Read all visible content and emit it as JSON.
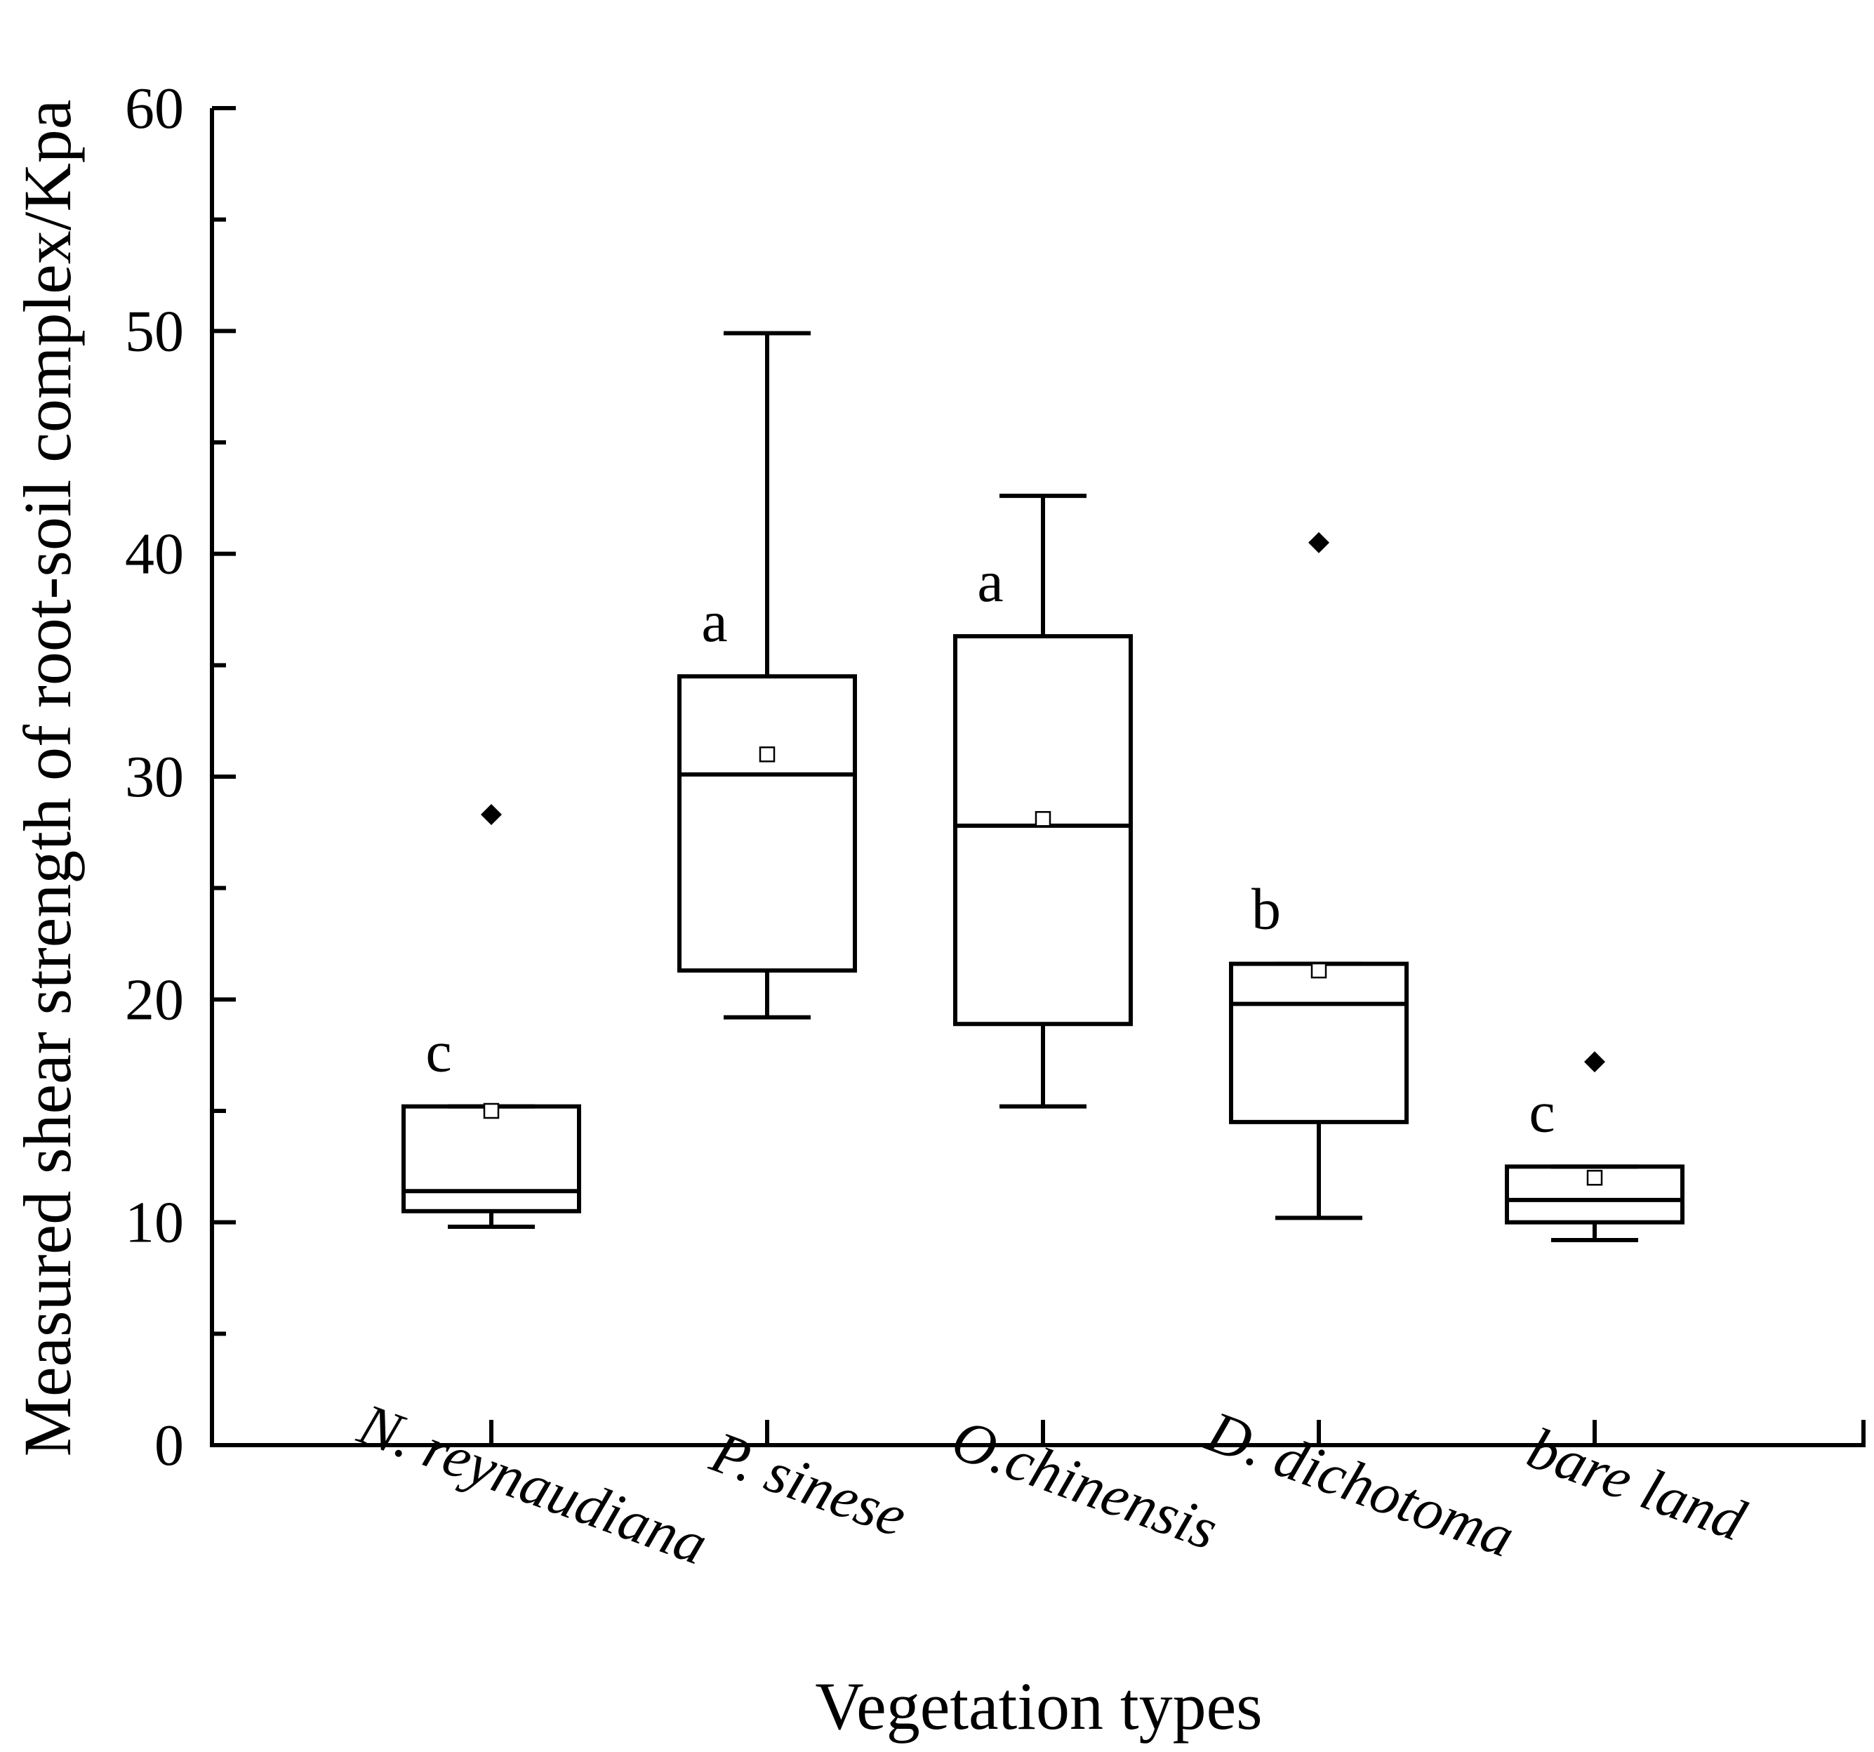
{
  "chart_data": {
    "type": "box",
    "title": "",
    "xlabel": "Vegetation types",
    "ylabel": "Measured shear strength of root-soil complex/Kpa",
    "ylim": [
      0,
      60
    ],
    "yticks": [
      "0",
      "10",
      "20",
      "30",
      "40",
      "50",
      "60"
    ],
    "categories": [
      "N. reynaudiana",
      "P. sinese",
      "O.chinensis",
      "D. dichotoma",
      "bare land"
    ],
    "boxes": [
      {
        "category": "N. reynaudiana",
        "whisker_low": 9.8,
        "q1": 10.5,
        "median": 11.4,
        "q3": 15.2,
        "whisker_high": 15.2,
        "mean": 15.0,
        "outliers": [
          28.3
        ],
        "significance": "c"
      },
      {
        "category": "P. sinese",
        "whisker_low": 19.2,
        "q1": 21.3,
        "median": 30.1,
        "q3": 34.5,
        "whisker_high": 49.9,
        "mean": 31.0,
        "outliers": [],
        "significance": "a"
      },
      {
        "category": "O.chinensis",
        "whisker_low": 15.2,
        "q1": 18.9,
        "median": 27.8,
        "q3": 36.3,
        "whisker_high": 42.6,
        "mean": 28.1,
        "outliers": [],
        "significance": "a"
      },
      {
        "category": "D. dichotoma",
        "whisker_low": 10.2,
        "q1": 14.5,
        "median": 19.8,
        "q3": 21.6,
        "whisker_high": 21.6,
        "mean": 21.3,
        "outliers": [
          40.5
        ],
        "significance": "b"
      },
      {
        "category": "bare land",
        "whisker_low": 9.2,
        "q1": 10.0,
        "median": 11.0,
        "q3": 12.5,
        "whisker_high": 12.5,
        "mean": 12.0,
        "outliers": [
          17.2
        ],
        "significance": "c"
      }
    ]
  }
}
